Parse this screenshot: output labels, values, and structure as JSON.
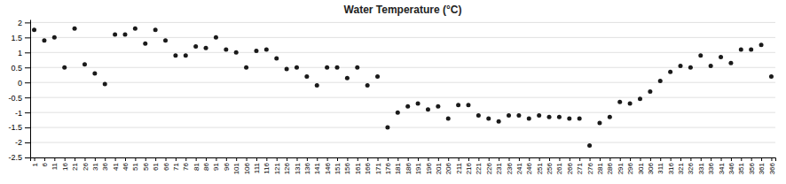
{
  "chart_data": {
    "type": "scatter",
    "title": "Water Temperature (°C)",
    "x": [
      1,
      6,
      11,
      16,
      21,
      26,
      31,
      36,
      41,
      46,
      51,
      56,
      61,
      66,
      71,
      76,
      81,
      86,
      91,
      96,
      101,
      106,
      111,
      116,
      121,
      126,
      131,
      136,
      141,
      146,
      151,
      156,
      161,
      166,
      171,
      176,
      181,
      186,
      191,
      196,
      201,
      206,
      211,
      216,
      221,
      226,
      231,
      236,
      241,
      246,
      251,
      256,
      261,
      266,
      271,
      276,
      281,
      286,
      291,
      296,
      301,
      306,
      311,
      316,
      321,
      326,
      331,
      336,
      341,
      346,
      351,
      356,
      361,
      366
    ],
    "values": [
      1.75,
      1.4,
      1.5,
      0.5,
      1.8,
      0.6,
      0.3,
      -0.05,
      1.6,
      1.6,
      1.8,
      1.3,
      1.75,
      1.4,
      0.9,
      0.9,
      1.2,
      1.15,
      1.5,
      1.1,
      1.0,
      0.5,
      1.05,
      1.1,
      0.8,
      0.45,
      0.5,
      0.2,
      -0.1,
      0.5,
      0.5,
      0.15,
      0.5,
      -0.1,
      0.2,
      -1.5,
      -1.0,
      -0.8,
      -0.7,
      -0.9,
      -0.8,
      -1.2,
      -0.75,
      -0.75,
      -1.1,
      -1.2,
      -1.3,
      -1.1,
      -1.1,
      -1.2,
      -1.1,
      -1.15,
      -1.15,
      -1.2,
      -1.2,
      -2.1,
      -1.35,
      -1.15,
      -0.65,
      -0.7,
      -0.55,
      -0.3,
      0.05,
      0.35,
      0.55,
      0.5,
      0.9,
      0.55,
      0.85,
      0.65,
      1.1,
      1.1,
      1.25,
      0.2
    ],
    "color": "#1a1a1a",
    "xlim": [
      -1,
      368
    ],
    "xticks": [
      1,
      6,
      11,
      16,
      21,
      26,
      31,
      36,
      41,
      46,
      51,
      56,
      61,
      66,
      71,
      76,
      81,
      86,
      91,
      96,
      101,
      106,
      111,
      116,
      121,
      126,
      131,
      136,
      141,
      146,
      151,
      156,
      161,
      166,
      171,
      176,
      181,
      186,
      191,
      196,
      201,
      206,
      211,
      216,
      221,
      226,
      231,
      236,
      241,
      246,
      251,
      256,
      261,
      266,
      271,
      276,
      281,
      286,
      291,
      296,
      301,
      306,
      311,
      316,
      321,
      326,
      331,
      336,
      341,
      346,
      351,
      356,
      361,
      366
    ],
    "ylim": [
      -2.5,
      2.1
    ],
    "yticks": [
      -2.5,
      -2,
      -1.5,
      -1,
      -0.5,
      0,
      0.5,
      1,
      1.5,
      2
    ],
    "grid": true
  }
}
